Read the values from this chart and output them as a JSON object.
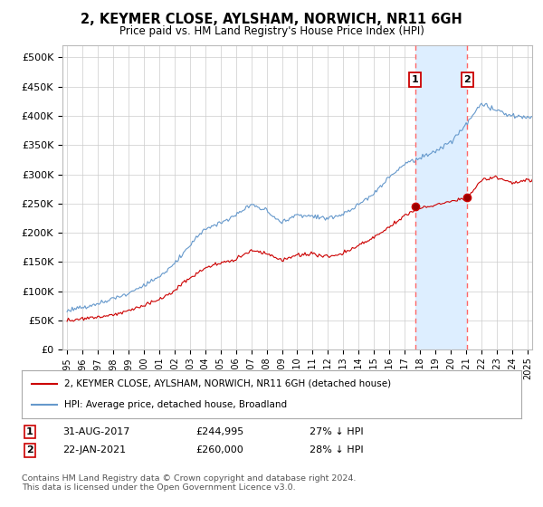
{
  "title": "2, KEYMER CLOSE, AYLSHAM, NORWICH, NR11 6GH",
  "subtitle": "Price paid vs. HM Land Registry's House Price Index (HPI)",
  "hpi_label": "HPI: Average price, detached house, Broadland",
  "property_label": "2, KEYMER CLOSE, AYLSHAM, NORWICH, NR11 6GH (detached house)",
  "footer": "Contains HM Land Registry data © Crown copyright and database right 2024.\nThis data is licensed under the Open Government Licence v3.0.",
  "purchase1": {
    "date": "31-AUG-2017",
    "price": 244995,
    "hpi_diff": "27% ↓ HPI",
    "x": 2017.67
  },
  "purchase2": {
    "date": "22-JAN-2021",
    "price": 260000,
    "hpi_diff": "28% ↓ HPI",
    "x": 2021.07
  },
  "ylim": [
    0,
    520000
  ],
  "xlim_start": 1994.7,
  "xlim_end": 2025.3,
  "hpi_color": "#6699cc",
  "property_color": "#cc0000",
  "grid_color": "#cccccc",
  "vline_color": "#ff6666",
  "shade_color": "#ddeeff",
  "background_color": "#ffffff"
}
